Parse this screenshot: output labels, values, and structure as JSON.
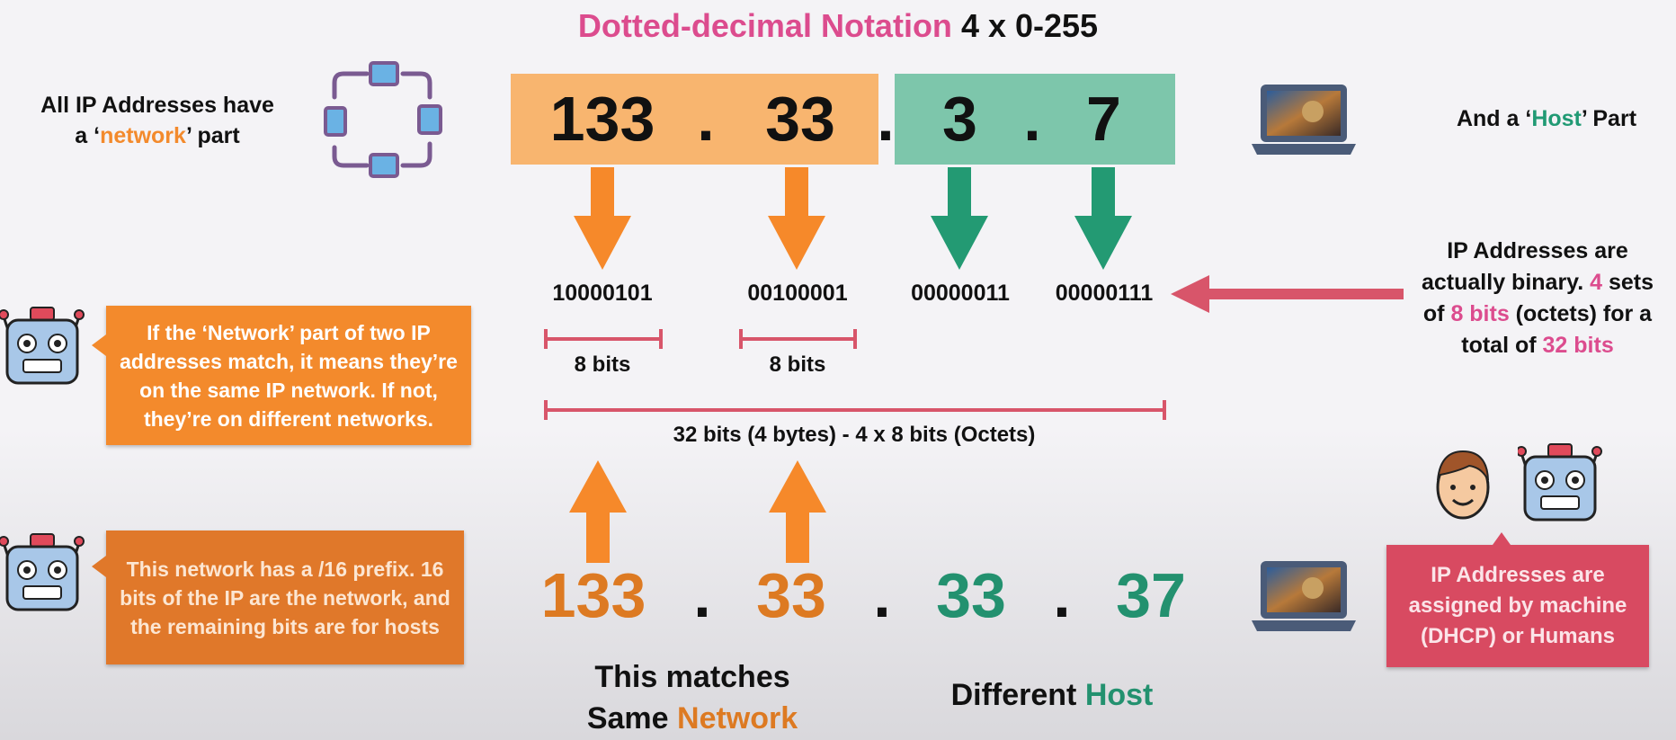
{
  "title": {
    "main": "Dotted-decimal Notation",
    "suffix": "4 x 0-255"
  },
  "left_note": {
    "line1": "All IP Addresses have",
    "pre": "a ‘",
    "highlight": "network",
    "post": "’ part"
  },
  "right_note": {
    "pre": "And a ‘",
    "highlight": "Host",
    "post": "’ Part"
  },
  "ip_top": {
    "o1": "133",
    "o2": "33",
    "o3": "3",
    "o4": "7",
    "dot": "."
  },
  "binary": {
    "b1": "10000101",
    "b2": "00100001",
    "b3": "00000011",
    "b4": "00000111"
  },
  "bits": {
    "left": "8 bits",
    "mid": "8 bits",
    "total": "32 bits (4 bytes) - 4 x 8 bits (Octets)"
  },
  "binary_note": {
    "l1": "IP Addresses are",
    "l2a": "actually binary. ",
    "l2b": "4",
    "l2c": " sets",
    "l3a": "of ",
    "l3b": "8 bits",
    "l3c": " (octets) for a",
    "l4a": "total of ",
    "l4b": "32 bits"
  },
  "callout_network": "If the ‘Network’ part of two IP addresses match, it means they’re on the same IP network. If not, they’re on different networks.",
  "callout_prefix": "This network has a /16 prefix. 16 bits of the IP are the network, and the remaining bits are for hosts",
  "callout_dhcp": "IP Addresses are assigned by machine (DHCP) or Humans",
  "ip_bottom": {
    "o1": "133",
    "o2": "33",
    "o3": "33",
    "o4": "37",
    "dot": "."
  },
  "matches": {
    "l1": "This matches",
    "l2a": "Same ",
    "l2b": "Network"
  },
  "different": {
    "a": "Different ",
    "b": "Host"
  },
  "icons": [
    "network-icon",
    "laptop-icon",
    "robot-icon",
    "face-icon"
  ],
  "colors": {
    "title": "#dc4c8e",
    "network_box": "#f8b56f",
    "host_box": "#7dc6ab",
    "orange_arrow": "#f6892a",
    "green_arrow": "#239a73",
    "bracket": "#d8556a",
    "callout_orange": "#f38a2c",
    "callout_pink": "#d84a61"
  }
}
